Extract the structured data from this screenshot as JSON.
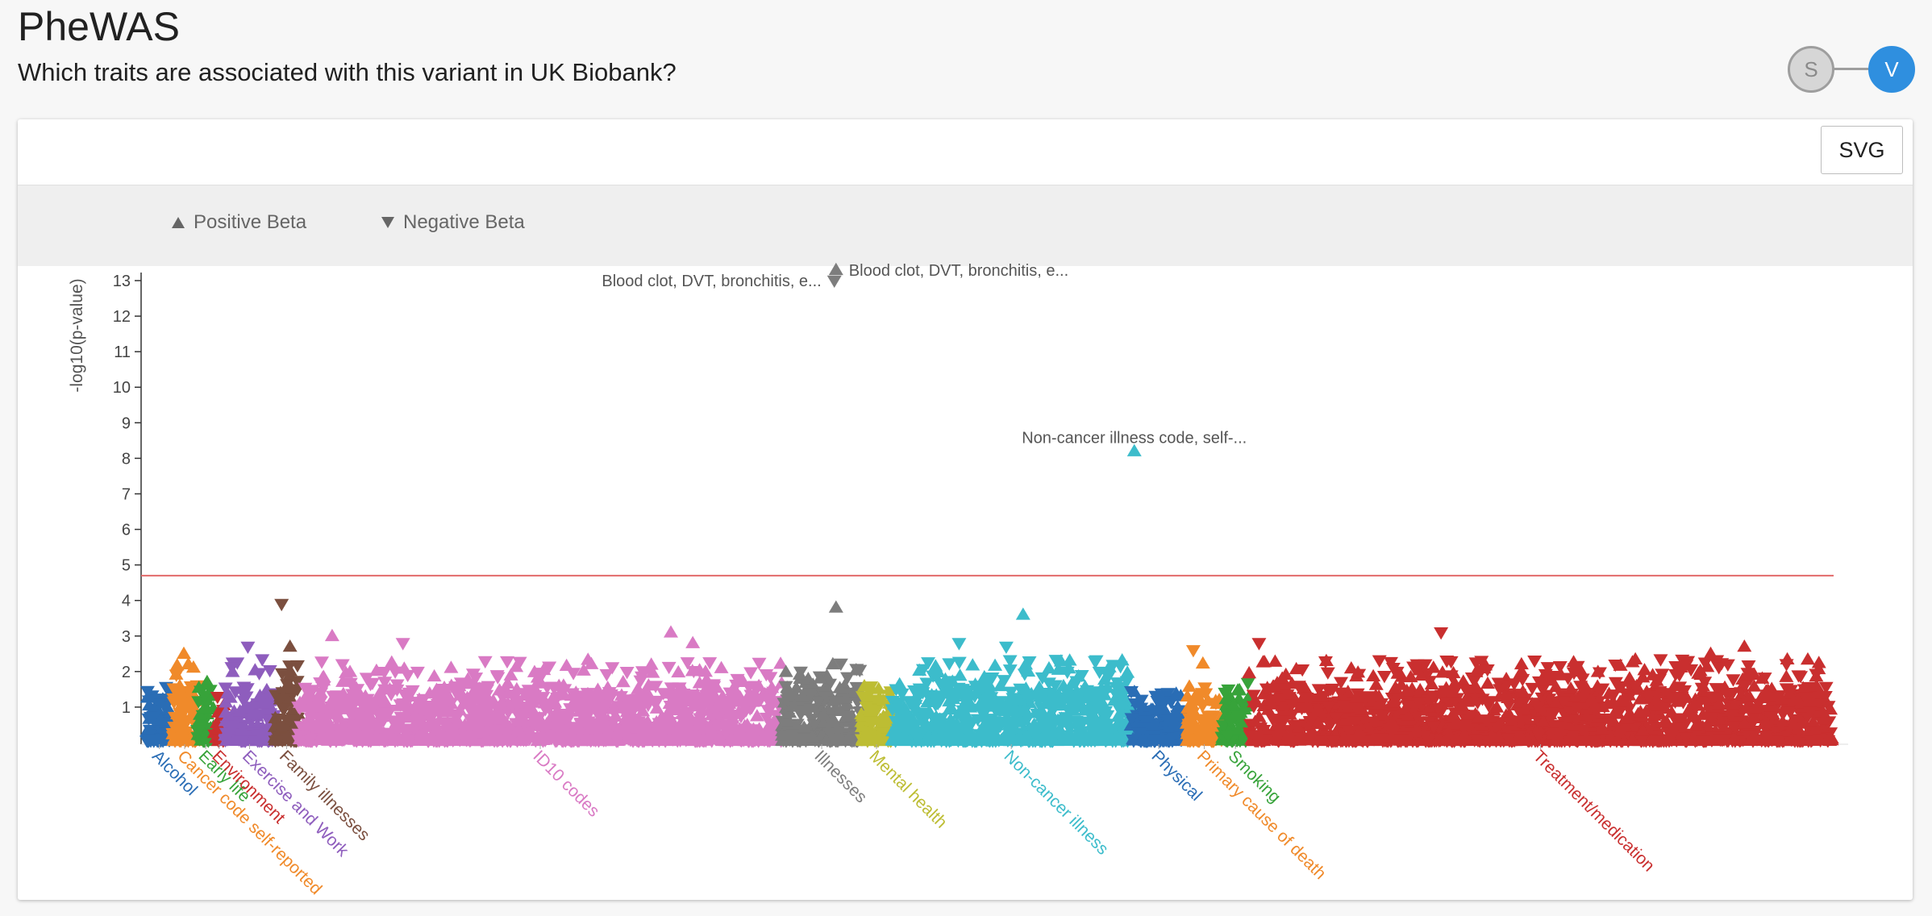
{
  "header": {
    "title": "PheWAS",
    "subtitle": "Which traits are associated with this variant in UK Biobank?"
  },
  "stepper": {
    "steps": [
      {
        "label": "S",
        "state": "inactive"
      },
      {
        "label": "V",
        "state": "active"
      }
    ],
    "active_color": "#2f8fdf"
  },
  "toolbar": {
    "export_label": "SVG"
  },
  "legend": {
    "positive_label": "Positive Beta",
    "negative_label": "Negative Beta"
  },
  "chart_data": {
    "type": "scatter",
    "title": "",
    "xlabel": "",
    "ylabel": "-log10(p-value)",
    "ylim": [
      0,
      13
    ],
    "yticks": [
      1,
      2,
      3,
      4,
      5,
      6,
      7,
      8,
      9,
      10,
      11,
      12,
      13
    ],
    "significance_threshold": 4.7,
    "threshold_color": "#e26a6a",
    "categories": [
      {
        "name": "Alcohol",
        "color": "#2a6db5",
        "x_range": [
          0,
          1.5
        ],
        "max_y": 1.6,
        "count": 90
      },
      {
        "name": "Cancer code self-reported",
        "color": "#f08a2a",
        "x_range": [
          1.5,
          3.0
        ],
        "max_y": 2.5,
        "count": 100
      },
      {
        "name": "Early life",
        "color": "#37a33a",
        "x_range": [
          3.0,
          4.0
        ],
        "max_y": 2.0,
        "count": 60
      },
      {
        "name": "Environment",
        "color": "#c92f2f",
        "x_range": [
          4.0,
          4.6
        ],
        "max_y": 1.5,
        "count": 30
      },
      {
        "name": "Exercise and Work",
        "color": "#8e5dbd",
        "x_range": [
          4.6,
          7.6
        ],
        "max_y": 2.8,
        "count": 160
      },
      {
        "name": "Family illnesses",
        "color": "#7b4f3f",
        "x_range": [
          7.6,
          9.0
        ],
        "max_y": 3.9,
        "count": 90
      },
      {
        "name": "ID10 codes",
        "color": "#d97ac4",
        "x_range": [
          9.0,
          37.7
        ],
        "max_y": 3.1,
        "count": 1500
      },
      {
        "name": "Illnesses",
        "color": "#7d7d7d",
        "x_range": [
          37.7,
          42.4
        ],
        "max_y": 13.3,
        "count": 260
      },
      {
        "name": "Mental health",
        "color": "#bdbd33",
        "x_range": [
          42.4,
          44.2
        ],
        "max_y": 1.6,
        "count": 100
      },
      {
        "name": "Non-cancer illness",
        "color": "#3cbccb",
        "x_range": [
          44.2,
          58.4
        ],
        "max_y": 8.2,
        "count": 700
      },
      {
        "name": "Physical",
        "color": "#2a6db5",
        "x_range": [
          58.4,
          61.7
        ],
        "max_y": 1.4,
        "count": 160
      },
      {
        "name": "Primary cause of death",
        "color": "#f08a2a",
        "x_range": [
          61.7,
          63.8
        ],
        "max_y": 2.6,
        "count": 110
      },
      {
        "name": "Smoking",
        "color": "#37a33a",
        "x_range": [
          63.8,
          65.4
        ],
        "max_y": 1.8,
        "count": 80
      },
      {
        "name": "Treatment/medication",
        "color": "#c92f2f",
        "x_range": [
          65.4,
          100
        ],
        "max_y": 3.2,
        "count": 1800
      }
    ],
    "highlights": [
      {
        "label": "Blood clot, DVT, bronchitis, e...",
        "x": 40.9,
        "y": 13.3,
        "direction": "positive",
        "label_side": "right",
        "color": "#7d7d7d"
      },
      {
        "label": "Blood clot, DVT, bronchitis, e...",
        "x": 40.8,
        "y": 13.0,
        "direction": "negative",
        "label_side": "left",
        "color": "#7d7d7d"
      },
      {
        "label": "Non-cancer illness code, self-...",
        "x": 58.6,
        "y": 8.2,
        "direction": "positive",
        "label_side": "above",
        "color": "#3cbccb"
      }
    ],
    "notable_points": [
      {
        "x": 8.0,
        "y": 3.9,
        "direction": "negative",
        "category": "Family illnesses"
      },
      {
        "x": 8.5,
        "y": 2.7,
        "direction": "positive",
        "category": "Family illnesses"
      },
      {
        "x": 2.2,
        "y": 2.5,
        "direction": "positive",
        "category": "Cancer code self-reported"
      },
      {
        "x": 6.0,
        "y": 2.7,
        "direction": "negative",
        "category": "Exercise and Work"
      },
      {
        "x": 11.0,
        "y": 3.0,
        "direction": "positive",
        "category": "ID10 codes"
      },
      {
        "x": 15.2,
        "y": 2.8,
        "direction": "negative",
        "category": "ID10 codes"
      },
      {
        "x": 31.1,
        "y": 3.1,
        "direction": "positive",
        "category": "ID10 codes"
      },
      {
        "x": 32.4,
        "y": 2.8,
        "direction": "positive",
        "category": "ID10 codes"
      },
      {
        "x": 40.9,
        "y": 3.8,
        "direction": "positive",
        "category": "Illnesses"
      },
      {
        "x": 52.0,
        "y": 3.6,
        "direction": "positive",
        "category": "Non-cancer illness"
      },
      {
        "x": 48.2,
        "y": 2.8,
        "direction": "negative",
        "category": "Non-cancer illness"
      },
      {
        "x": 51.0,
        "y": 2.7,
        "direction": "negative",
        "category": "Non-cancer illness"
      },
      {
        "x": 62.1,
        "y": 2.6,
        "direction": "negative",
        "category": "Primary cause of death"
      },
      {
        "x": 66.0,
        "y": 2.8,
        "direction": "negative",
        "category": "Treatment/medication"
      },
      {
        "x": 76.8,
        "y": 3.1,
        "direction": "negative",
        "category": "Treatment/medication"
      },
      {
        "x": 94.8,
        "y": 2.7,
        "direction": "positive",
        "category": "Treatment/medication"
      },
      {
        "x": 92.8,
        "y": 2.5,
        "direction": "positive",
        "category": "Treatment/medication"
      }
    ]
  }
}
